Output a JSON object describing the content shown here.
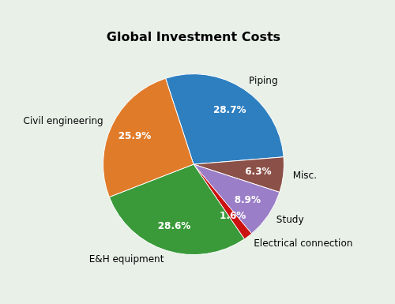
{
  "chart_data": {
    "type": "pie",
    "title": "Global Investment Costs",
    "categories": [
      "Piping",
      "Misc.",
      "Study",
      "Electrical connection",
      "E&H equipment",
      "Civil engineering"
    ],
    "values": [
      28.7,
      6.3,
      8.9,
      1.6,
      28.6,
      25.9
    ],
    "value_labels": [
      "28.7%",
      "6.3%",
      "8.9%",
      "1.6%",
      "28.6%",
      "25.9%"
    ],
    "colors": [
      "#2e7fc0",
      "#8b5047",
      "#9b7ec8",
      "#cc1111",
      "#3a9a3a",
      "#e07b2a"
    ],
    "data_labels": true
  }
}
